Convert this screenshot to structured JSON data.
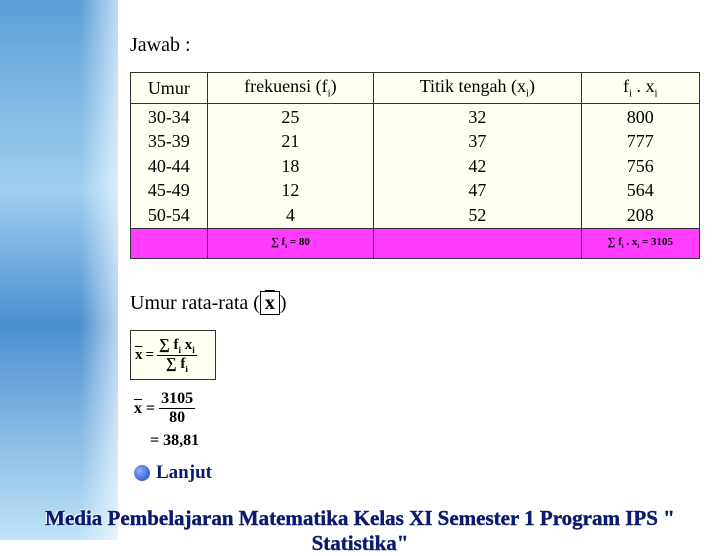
{
  "answer_label": "Jawab :",
  "table": {
    "header": [
      [
        "Umur"
      ],
      [
        "frekuensi (f",
        "i",
        ")"
      ],
      [
        "Titik tengah (x",
        "i",
        ")"
      ],
      [
        "f",
        "i",
        " . x",
        "i"
      ]
    ],
    "rows": [
      [
        "30-34",
        25,
        32,
        800
      ],
      [
        "35-39",
        21,
        37,
        777
      ],
      [
        "40-44",
        18,
        42,
        756
      ],
      [
        "45-49",
        12,
        47,
        564
      ],
      [
        "50-54",
        4,
        52,
        208
      ]
    ],
    "totals": {
      "frequency": [
        "∑ f",
        "i",
        " = 80"
      ],
      "product": [
        "∑ f",
        "i",
        " . x",
        "i",
        " = 3105"
      ]
    }
  },
  "mean_label": {
    "before": "Umur rata-rata (",
    "symbol": "x",
    "after": ")"
  },
  "formula": {
    "lhs": "x",
    "eq": "=",
    "numerator": [
      "∑ f",
      "i",
      " x",
      "i"
    ],
    "denominator": [
      "∑ f",
      "i"
    ]
  },
  "calculation": {
    "lhs": "x",
    "eq": "=",
    "numerator": "3105",
    "denominator": "80",
    "result": "= 38,81"
  },
  "next_button": "Lanjut",
  "footer": "Media Pembelajaran Matematika Kelas XI Semester 1 Program IPS \" Statistika\""
}
